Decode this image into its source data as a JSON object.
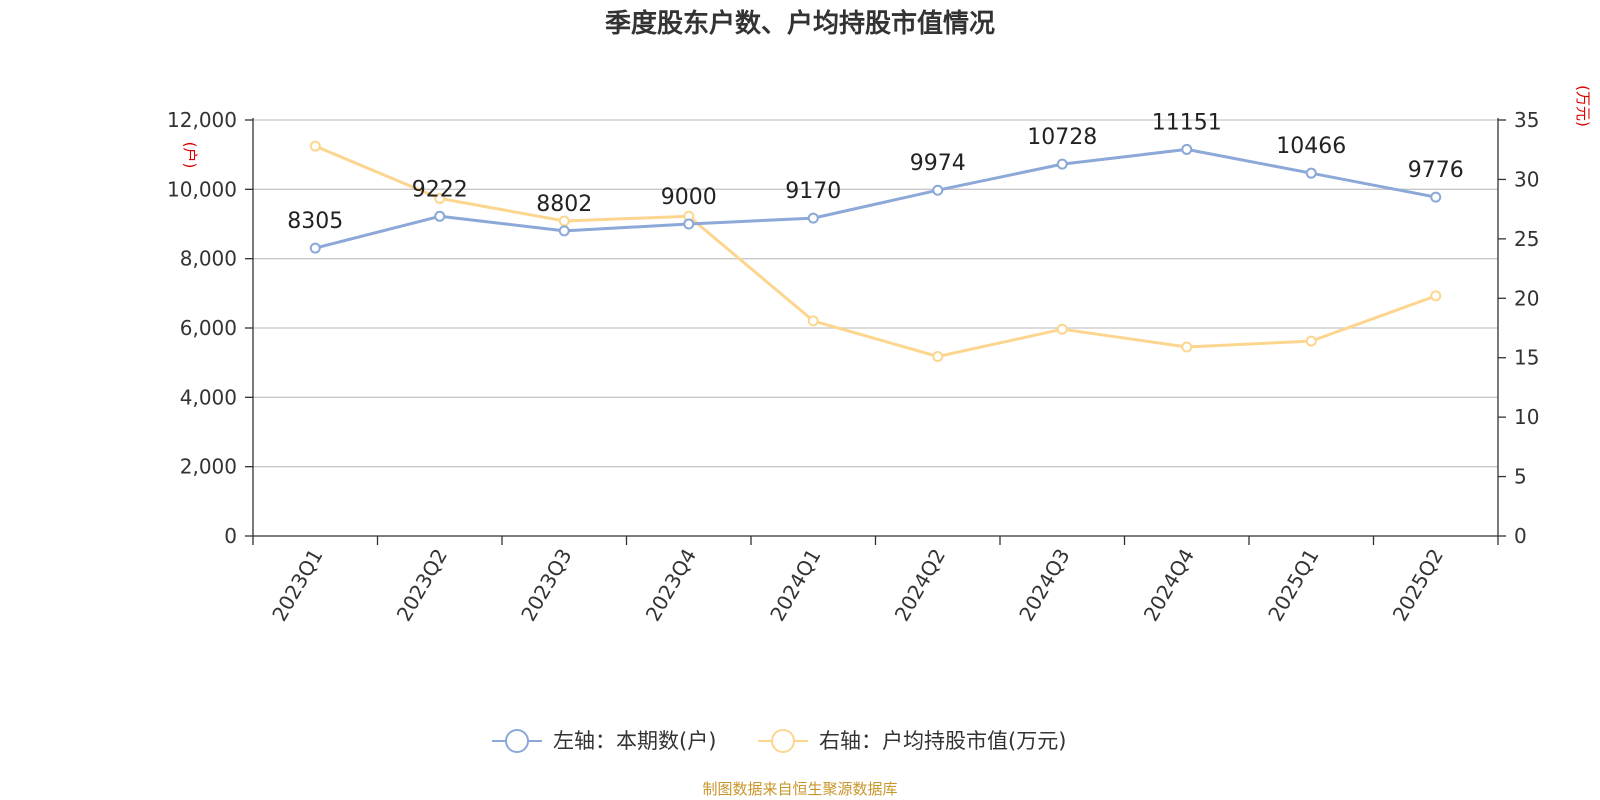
{
  "chart_data": {
    "type": "line",
    "title": "季度股东户数、户均持股市值情况",
    "categories": [
      "2023Q1",
      "2023Q2",
      "2023Q3",
      "2023Q4",
      "2024Q1",
      "2024Q2",
      "2024Q3",
      "2024Q4",
      "2025Q1",
      "2025Q2"
    ],
    "left_axis": {
      "unit_label": "(户)",
      "ylim": [
        0,
        12000
      ],
      "ticks": [
        0,
        2000,
        4000,
        6000,
        8000,
        10000,
        12000
      ],
      "tick_labels": [
        "0",
        "2,000",
        "4,000",
        "6,000",
        "8,000",
        "10,000",
        "12,000"
      ]
    },
    "right_axis": {
      "unit_label": "(万元)",
      "ylim": [
        0,
        35
      ],
      "ticks": [
        0,
        5,
        10,
        15,
        20,
        25,
        30,
        35
      ],
      "tick_labels": [
        "0",
        "5",
        "10",
        "15",
        "20",
        "25",
        "30",
        "35"
      ]
    },
    "series": [
      {
        "name": "左轴：本期数(户)",
        "axis": "left",
        "color": "#8ba8d8",
        "values": [
          8305,
          9222,
          8802,
          9000,
          9170,
          9974,
          10728,
          11151,
          10466,
          9776
        ],
        "data_labels": [
          "8305",
          "9222",
          "8802",
          "9000",
          "9170",
          "9974",
          "10728",
          "11151",
          "10466",
          "9776"
        ]
      },
      {
        "name": "右轴：户均持股市值(万元)",
        "axis": "right",
        "color": "#fcd68f",
        "values": [
          32.8,
          28.4,
          26.5,
          26.9,
          18.1,
          15.1,
          17.4,
          15.9,
          16.4,
          20.2
        ]
      }
    ],
    "grid": true,
    "legend_position": "bottom-center",
    "source": "制图数据来自恒生聚源数据库"
  }
}
